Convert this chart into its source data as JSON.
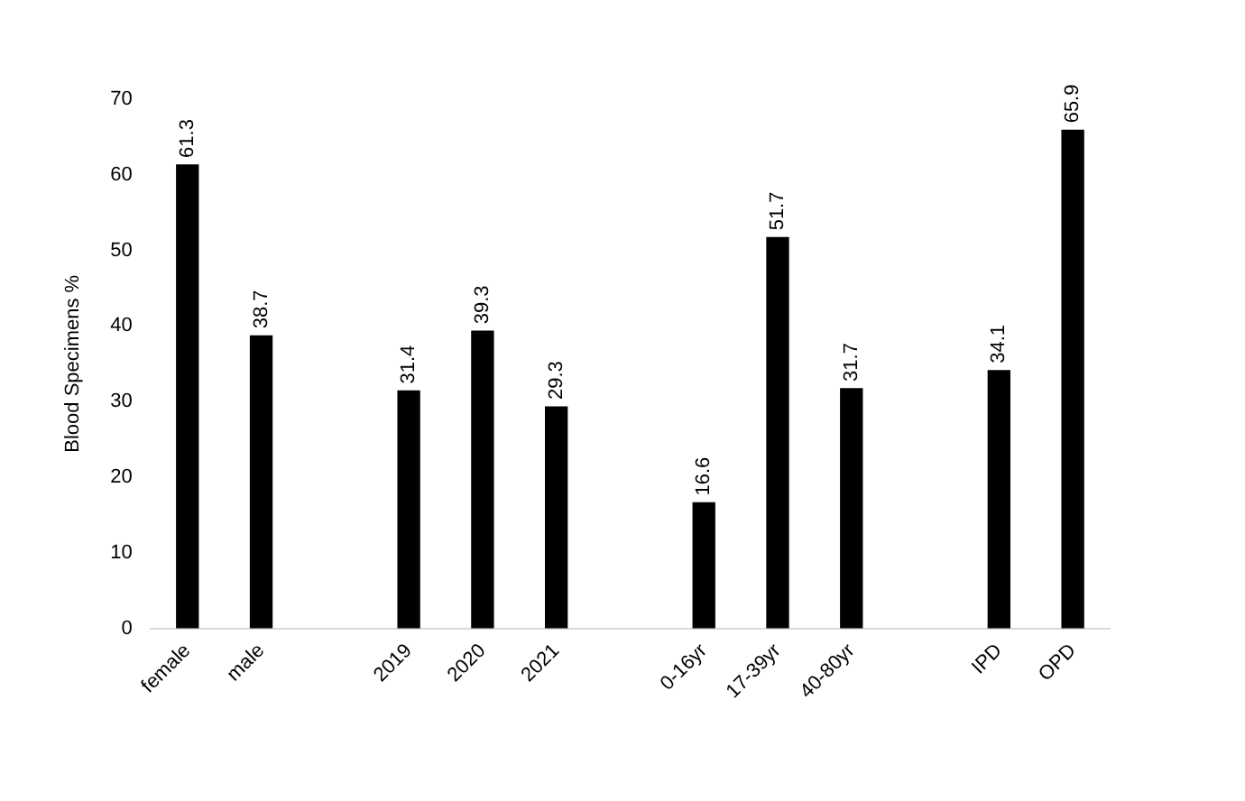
{
  "chart_data": {
    "type": "bar",
    "ylabel": "Blood Specimens %",
    "categories": [
      "female",
      "male",
      null,
      "2019",
      "2020",
      "2021",
      null,
      "0-16yr",
      "17-39yr",
      "40-80yr",
      null,
      "IPD",
      "OPD"
    ],
    "values": [
      61.3,
      38.7,
      null,
      31.4,
      39.3,
      29.3,
      null,
      16.6,
      51.7,
      31.7,
      null,
      34.1,
      65.9
    ],
    "color": "#000000",
    "ylim": [
      0,
      70
    ],
    "yticks": [
      0,
      10,
      20,
      30,
      40,
      50,
      60,
      70
    ],
    "grid": false,
    "legend": false,
    "data_labels": true
  }
}
